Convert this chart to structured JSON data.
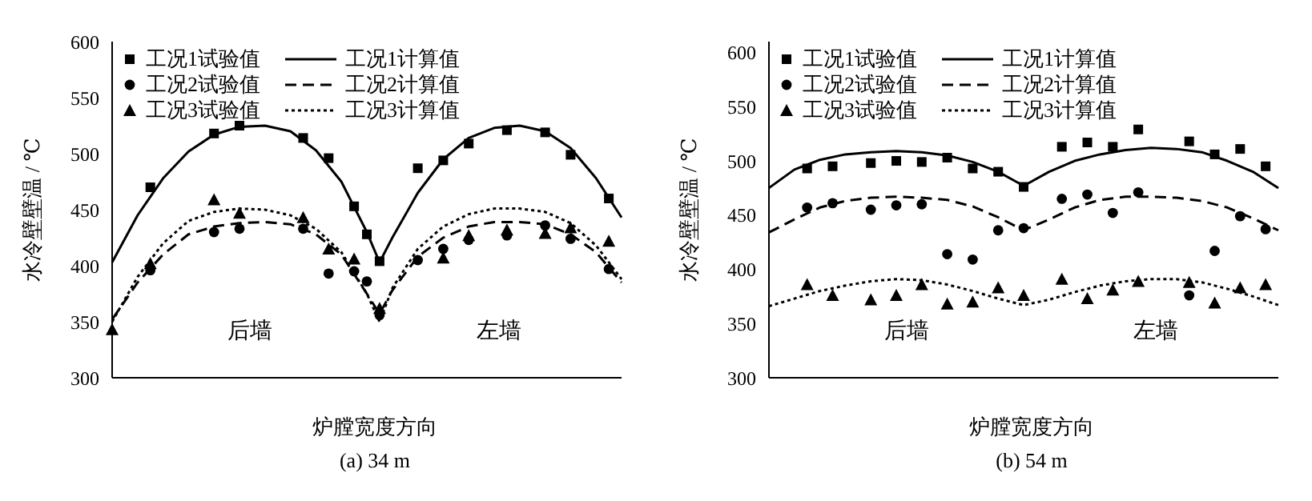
{
  "chart_data": [
    {
      "type": "scatter",
      "title": "(a) 34 m",
      "xlabel": "炉膛宽度方向",
      "ylabel": "水冷壁壁温 / ℃",
      "annotations": [
        "后墙",
        "左墙"
      ],
      "categories": [
        null,
        null,
        null,
        null,
        null,
        null,
        null,
        null,
        null,
        null,
        null,
        null,
        null,
        null,
        null,
        null,
        null,
        null,
        null,
        null,
        null,
        null,
        null,
        null,
        null,
        null,
        null,
        null,
        null,
        null,
        null,
        null,
        null,
        null,
        null,
        null,
        null,
        null,
        null,
        null,
        null
      ],
      "ylim": [
        300,
        600
      ],
      "yticks": [
        300,
        350,
        400,
        450,
        500,
        550,
        600
      ],
      "tick_labels": "y",
      "grid": false,
      "legend": "top",
      "series": [
        {
          "name": "工况1试验值",
          "marker": "square",
          "color": "#000000",
          "values": [
            null,
            null,
            null,
            470,
            null,
            null,
            null,
            null,
            518,
            null,
            525,
            null,
            null,
            null,
            null,
            514,
            null,
            496,
            null,
            453,
            428,
            404,
            null,
            null,
            487,
            null,
            494,
            null,
            509,
            null,
            null,
            521,
            null,
            null,
            519,
            null,
            499,
            null,
            null,
            460,
            null
          ]
        },
        {
          "name": "工况2试验值",
          "marker": "circle",
          "color": "#000000",
          "values": [
            null,
            null,
            null,
            396,
            null,
            null,
            null,
            null,
            430,
            null,
            433,
            null,
            null,
            null,
            null,
            433,
            null,
            393,
            null,
            395,
            386,
            356,
            null,
            null,
            405,
            null,
            415,
            null,
            423,
            null,
            null,
            427,
            null,
            null,
            436,
            null,
            424,
            null,
            null,
            397,
            null
          ]
        },
        {
          "name": "工况3试验值",
          "marker": "triangle",
          "color": "#000000",
          "values": [
            343,
            null,
            null,
            402,
            null,
            null,
            null,
            null,
            459,
            null,
            447,
            null,
            null,
            null,
            null,
            443,
            null,
            415,
            null,
            406,
            null,
            362,
            null,
            null,
            null,
            null,
            407,
            null,
            427,
            null,
            null,
            432,
            null,
            null,
            429,
            null,
            434,
            null,
            null,
            422,
            null
          ]
        },
        {
          "name": "工况1计算值",
          "type": "line",
          "line_style": "solid",
          "color": "#000000",
          "values": [
            403,
            null,
            445,
            null,
            478,
            null,
            502,
            null,
            517,
            null,
            524,
            null,
            525,
            null,
            520,
            null,
            503,
            null,
            475,
            null,
            430,
            403,
            425,
            null,
            465,
            null,
            495,
            null,
            514,
            null,
            523,
            null,
            525,
            null,
            520,
            null,
            505,
            null,
            478,
            null,
            443
          ]
        },
        {
          "name": "工况2计算值",
          "type": "line",
          "line_style": "dashed",
          "color": "#000000",
          "values": [
            352,
            null,
            385,
            null,
            410,
            null,
            428,
            null,
            435,
            null,
            438,
            null,
            439,
            null,
            437,
            null,
            428,
            null,
            410,
            null,
            375,
            357,
            378,
            null,
            408,
            null,
            425,
            null,
            435,
            null,
            439,
            null,
            439,
            null,
            437,
            null,
            428,
            null,
            412,
            null,
            385
          ]
        },
        {
          "name": "工况3计算值",
          "type": "line",
          "line_style": "dotted",
          "color": "#000000",
          "values": [
            350,
            null,
            390,
            null,
            420,
            null,
            440,
            null,
            448,
            null,
            451,
            null,
            450,
            null,
            445,
            null,
            433,
            null,
            412,
            null,
            375,
            350,
            380,
            null,
            415,
            null,
            435,
            null,
            446,
            null,
            451,
            null,
            451,
            null,
            448,
            null,
            438,
            null,
            418,
            null,
            388
          ]
        }
      ]
    },
    {
      "type": "scatter",
      "title": "(b) 54 m",
      "xlabel": "炉膛宽度方向",
      "ylabel": "水冷壁壁温 / ℃",
      "annotations": [
        "后墙",
        "左墙"
      ],
      "categories": [
        null,
        null,
        null,
        null,
        null,
        null,
        null,
        null,
        null,
        null,
        null,
        null,
        null,
        null,
        null,
        null,
        null,
        null,
        null,
        null,
        null,
        null,
        null,
        null,
        null,
        null,
        null,
        null,
        null,
        null,
        null,
        null,
        null,
        null,
        null,
        null,
        null,
        null,
        null,
        null,
        null
      ],
      "ylim": [
        300,
        610
      ],
      "yticks": [
        300,
        350,
        400,
        450,
        500,
        550,
        600
      ],
      "tick_labels": "y",
      "grid": false,
      "legend": "top",
      "series": [
        {
          "name": "工况1试验值",
          "marker": "square",
          "color": "#000000",
          "values": [
            null,
            null,
            null,
            493,
            null,
            495,
            null,
            null,
            498,
            null,
            500,
            null,
            499,
            null,
            503,
            null,
            493,
            null,
            490,
            null,
            476,
            null,
            null,
            513,
            null,
            517,
            null,
            513,
            null,
            529,
            null,
            null,
            null,
            518,
            null,
            506,
            null,
            511,
            null,
            495,
            null
          ]
        },
        {
          "name": "工况2试验值",
          "marker": "circle",
          "color": "#000000",
          "values": [
            null,
            null,
            null,
            457,
            null,
            461,
            null,
            null,
            455,
            null,
            459,
            null,
            460,
            null,
            414,
            null,
            409,
            null,
            436,
            null,
            438,
            null,
            null,
            465,
            null,
            469,
            null,
            452,
            null,
            471,
            null,
            null,
            null,
            376,
            null,
            417,
            null,
            449,
            null,
            437,
            null
          ]
        },
        {
          "name": "工况3试验值",
          "marker": "triangle",
          "color": "#000000",
          "values": [
            null,
            null,
            null,
            386,
            null,
            376,
            null,
            null,
            372,
            null,
            376,
            null,
            386,
            null,
            368,
            null,
            370,
            null,
            383,
            null,
            376,
            null,
            null,
            391,
            null,
            373,
            null,
            381,
            null,
            389,
            null,
            null,
            null,
            388,
            null,
            369,
            null,
            383,
            null,
            386,
            null
          ]
        },
        {
          "name": "工况1计算值",
          "type": "line",
          "line_style": "solid",
          "color": "#000000",
          "values": [
            475,
            null,
            492,
            null,
            501,
            null,
            506,
            null,
            508,
            null,
            509,
            null,
            508,
            null,
            505,
            null,
            499,
            null,
            490,
            null,
            477,
            null,
            490,
            null,
            500,
            null,
            506,
            null,
            510,
            null,
            512,
            null,
            511,
            null,
            508,
            null,
            500,
            null,
            490,
            null,
            475
          ]
        },
        {
          "name": "工况2计算值",
          "type": "line",
          "line_style": "dashed",
          "color": "#000000",
          "values": [
            434,
            null,
            446,
            null,
            457,
            null,
            463,
            null,
            466,
            null,
            467,
            null,
            466,
            null,
            464,
            null,
            458,
            null,
            448,
            null,
            436,
            null,
            446,
            null,
            457,
            null,
            464,
            null,
            467,
            null,
            467,
            null,
            466,
            null,
            463,
            null,
            457,
            null,
            447,
            null,
            436
          ]
        },
        {
          "name": "工况3计算值",
          "type": "line",
          "line_style": "dotted",
          "color": "#000000",
          "values": [
            366,
            null,
            373,
            null,
            380,
            null,
            385,
            null,
            389,
            null,
            391,
            null,
            390,
            null,
            386,
            null,
            380,
            null,
            373,
            null,
            367,
            null,
            372,
            null,
            379,
            null,
            385,
            null,
            389,
            null,
            391,
            null,
            391,
            null,
            388,
            null,
            382,
            null,
            375,
            null,
            367
          ]
        }
      ]
    }
  ]
}
